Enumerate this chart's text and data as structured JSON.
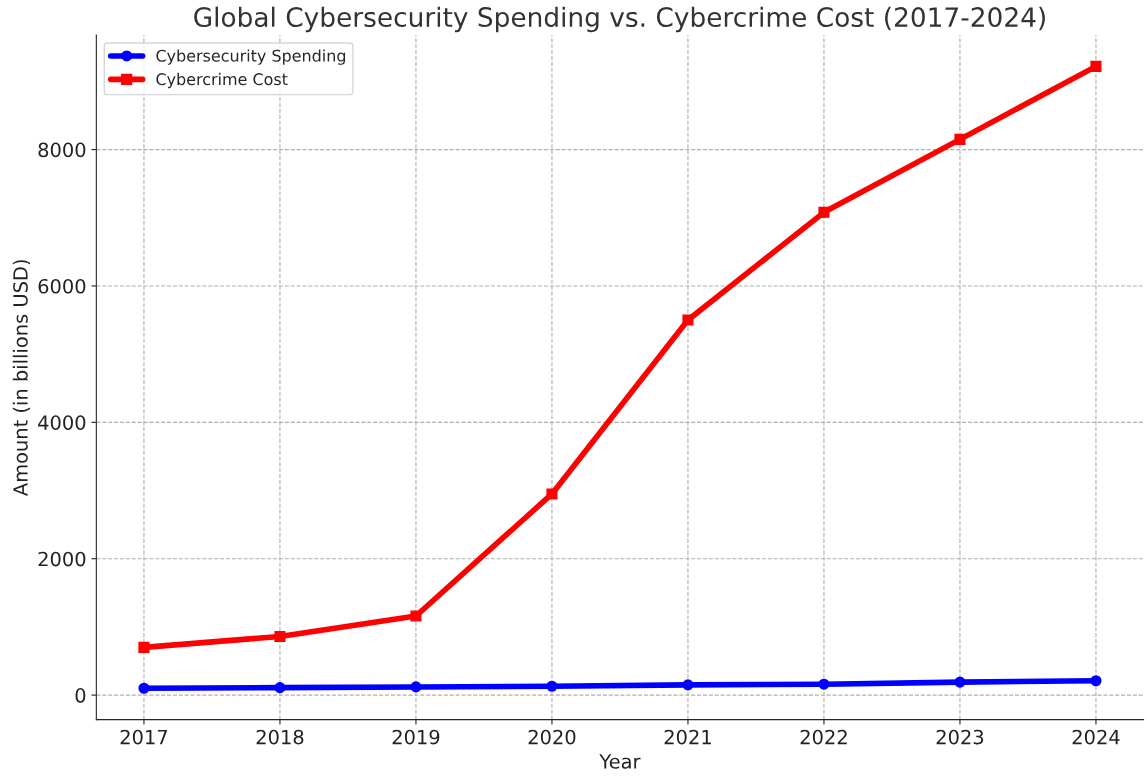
{
  "chart_data": {
    "type": "line",
    "title": "Global Cybersecurity Spending vs. Cybercrime Cost (2017-2024)",
    "xlabel": "Year",
    "ylabel": "Amount (in billions USD)",
    "x": [
      2017,
      2018,
      2019,
      2020,
      2021,
      2022,
      2023,
      2024
    ],
    "series": [
      {
        "name": "Cybersecurity Spending",
        "color": "#0000ff",
        "marker": "circle",
        "values": [
          100,
          110,
          120,
          130,
          150,
          160,
          190,
          210
        ]
      },
      {
        "name": "Cybercrime Cost",
        "color": "#ff0000",
        "marker": "square",
        "values": [
          700,
          860,
          1160,
          2950,
          5500,
          7080,
          8150,
          9220
        ]
      }
    ],
    "xlim": [
      2016.65,
      2024.35
    ],
    "xticks": [
      2017,
      2018,
      2019,
      2020,
      2021,
      2022,
      2023,
      2024
    ],
    "ylim": [
      -360,
      9680
    ],
    "yticks": [
      0,
      2000,
      4000,
      6000,
      8000
    ],
    "grid": true,
    "legend": "top left",
    "line_style": "solid"
  }
}
